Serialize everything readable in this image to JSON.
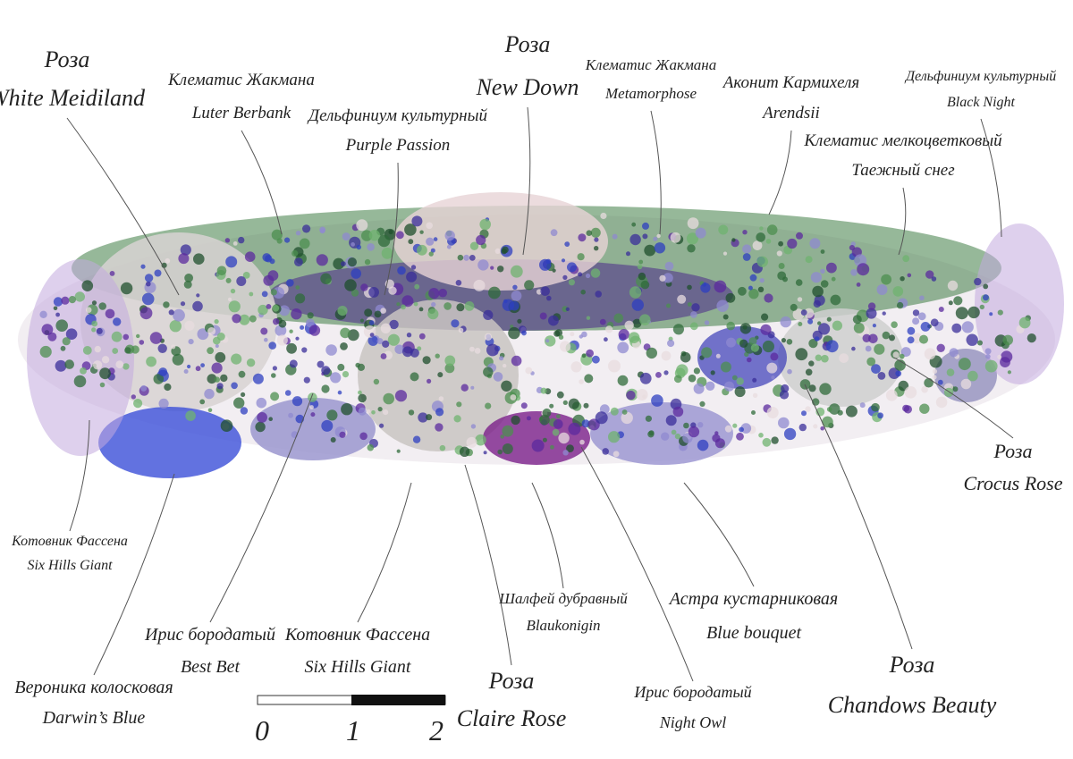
{
  "labels": [
    {
      "lines": [
        "Роза",
        "White Meidiland"
      ]
    },
    {
      "lines": [
        "Клематис Жакмана",
        "Luter Berbank"
      ]
    },
    {
      "lines": [
        "Дельфиниум культурный",
        "Purple Passion"
      ]
    },
    {
      "lines": [
        "Роза",
        "New Down"
      ]
    },
    {
      "lines": [
        "Клематис Жакмана",
        "Metamorphose"
      ]
    },
    {
      "lines": [
        "Аконит Кармихеля",
        "Arendsii"
      ]
    },
    {
      "lines": [
        "Дельфиниум культурный",
        "Black Night"
      ]
    },
    {
      "lines": [
        "Клематис мелкоцветковый",
        "Таежный снег"
      ]
    },
    {
      "lines": [
        "Роза",
        "Crocus Rose"
      ]
    },
    {
      "lines": [
        "Котовник Фассена",
        "Six Hills Giant"
      ]
    },
    {
      "lines": [
        "Ирис бородатый",
        "Best Bet"
      ]
    },
    {
      "lines": [
        "Котовник Фассена",
        "Six Hills Giant"
      ]
    },
    {
      "lines": [
        "Вероника колосковая",
        "Darwin’s Blue"
      ]
    },
    {
      "lines": [
        "Роза",
        "Claire Rose"
      ]
    },
    {
      "lines": [
        "Шалфей дубравный",
        "Blaukonigin"
      ]
    },
    {
      "lines": [
        "Астра кустарниковая",
        "Blue bouquet"
      ]
    },
    {
      "lines": [
        "Ирис бородатый",
        "Night Owl"
      ]
    },
    {
      "lines": [
        "Роза",
        "Chandows Beauty"
      ]
    }
  ],
  "scale": {
    "labels": [
      "0",
      "1",
      "2"
    ]
  }
}
